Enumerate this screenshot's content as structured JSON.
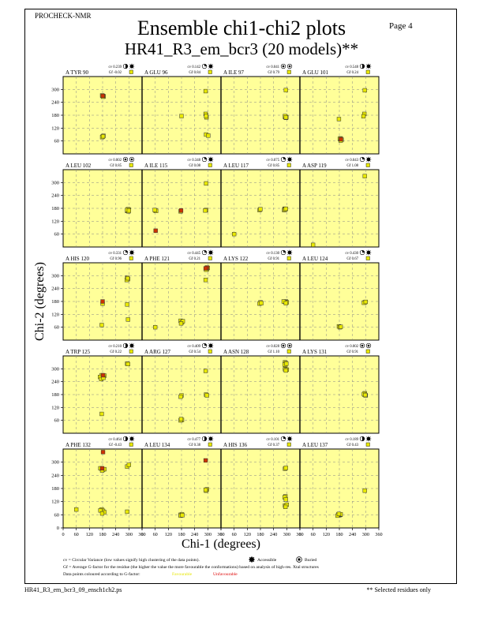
{
  "header": {
    "program": "PROCHECK-NMR",
    "page_label": "Page  4",
    "title": "Ensemble chi1-chi2 plots",
    "subtitle": "HR41_R3_em_bcr3 (20 models)**"
  },
  "footer": {
    "filename": "HR41_R3_em_bcr3_09_ensch1ch2.ps",
    "note": "** Selected residues only"
  },
  "legend": {
    "line1": "cv = Circular Variance (low values signify high clustering of the data points).",
    "accessible": "Accessible",
    "buried": "Buried",
    "line2": "Gf = Average G-factor for the residue (the higher the value the more favourable the conformations) based on analysis of high-res. Xtal structures",
    "line3": "Data points coloured according to G-factor:",
    "favourable": "Favourable",
    "unfavourable": "Unfavourable"
  },
  "colors": {
    "panel_bg": "#ffff99",
    "point": "#e8e800",
    "point_bad": "#cc3300",
    "favourable_text": "#e6e600",
    "unfavourable_text": "#dd0000"
  },
  "chart_data": {
    "type": "scatter",
    "xlabel": "Chi-1 (degrees)",
    "ylabel": "Chi-2 (degrees)",
    "xlim": [
      0,
      360
    ],
    "ylim": [
      0,
      360
    ],
    "x_ticks": [
      0,
      60,
      120,
      180,
      240,
      300,
      360
    ],
    "y_ticks": [
      60,
      120,
      180,
      240,
      300
    ],
    "bottom_y_ticks": [
      0,
      60,
      120,
      180,
      240,
      300
    ],
    "grid": true,
    "rows": [
      [
        {
          "label": "A TYR 90",
          "cv": "cv 0.239",
          "gf": "Gf -0.02",
          "acc": "partial",
          "pts": [
            [
              180,
              270
            ],
            [
              185,
              268
            ],
            [
              178,
              272
            ],
            [
              182,
              266
            ],
            [
              180,
              80
            ],
            [
              184,
              84
            ],
            [
              178,
              78
            ],
            [
              182,
              82
            ]
          ],
          "bad": [
            [
              181,
              270
            ]
          ]
        },
        {
          "label": "A GLU 96",
          "cv": "cv 0.142",
          "gf": "Gf 0.84",
          "acc": "accessible",
          "pts": [
            [
              290,
              292
            ],
            [
              292,
              180
            ],
            [
              294,
              170
            ],
            [
              290,
              186
            ],
            [
              292,
              176
            ],
            [
              292,
              90
            ],
            [
              302,
              85
            ],
            [
              180,
              176
            ]
          ],
          "bad": []
        },
        {
          "label": "A ILE 97",
          "cv": "cv 0.041",
          "gf": "Gf 0.79",
          "acc": "buried",
          "pts": [
            [
              296,
              297
            ],
            [
              292,
              172
            ],
            [
              296,
              168
            ],
            [
              294,
              174
            ],
            [
              298,
              170
            ],
            [
              292,
              176
            ],
            [
              296,
              170
            ]
          ],
          "bad": []
        },
        {
          "label": "A GLU 101",
          "cv": "cv 0.548",
          "gf": "Gf 0.24",
          "acc": "partial",
          "pts": [
            [
              296,
              296
            ],
            [
              294,
              186
            ],
            [
              290,
              175
            ],
            [
              178,
              162
            ],
            [
              186,
              72
            ],
            [
              190,
              66
            ],
            [
              182,
              70
            ],
            [
              186,
              62
            ]
          ],
          "bad": [
            [
              187,
              68
            ]
          ]
        }
      ],
      [
        {
          "label": "A LEU 102",
          "cv": "cv 0.002",
          "gf": "Gf 0.85",
          "acc": "buried",
          "pts": [
            [
              296,
              172
            ],
            [
              292,
              168
            ],
            [
              300,
              174
            ],
            [
              294,
              170
            ],
            [
              298,
              166
            ],
            [
              296,
              176
            ],
            [
              292,
              172
            ],
            [
              300,
              170
            ]
          ],
          "bad": []
        },
        {
          "label": "A ILE 115",
          "cv": "cv 0.348",
          "gf": "Gf 0.08",
          "acc": "accessible",
          "pts": [
            [
              292,
              296
            ],
            [
              60,
              170
            ],
            [
              64,
              168
            ],
            [
              58,
              172
            ],
            [
              176,
              166
            ],
            [
              292,
              172
            ],
            [
              288,
              170
            ]
          ],
          "bad": [
            [
              62,
              76
            ],
            [
              178,
              170
            ]
          ]
        },
        {
          "label": "A LEU 117",
          "cv": "cv 0.075",
          "gf": "Gf 0.85",
          "acc": "accessible",
          "pts": [
            [
              290,
              178
            ],
            [
              294,
              176
            ],
            [
              288,
              172
            ],
            [
              292,
              174
            ],
            [
              296,
              178
            ],
            [
              176,
              172
            ],
            [
              180,
              176
            ],
            [
              60,
              60
            ]
          ],
          "bad": []
        },
        {
          "label": "A ASP 119",
          "cv": "cv 0.043",
          "gf": "Gf 1.08",
          "acc": "accessible",
          "pts": [
            [
              296,
              330
            ],
            [
              60,
              10
            ]
          ],
          "bad": []
        }
      ],
      [
        {
          "label": "A HIS 120",
          "cv": "cv 0.331",
          "gf": "Gf 0.96",
          "acc": "accessible",
          "pts": [
            [
              292,
              290
            ],
            [
              296,
              284
            ],
            [
              290,
              280
            ],
            [
              294,
              288
            ],
            [
              180,
              170
            ],
            [
              292,
              166
            ],
            [
              296,
              96
            ],
            [
              176,
              70
            ]
          ],
          "bad": [
            [
              180,
              180
            ]
          ]
        },
        {
          "label": "A PHE 121",
          "cv": "cv 0.445",
          "gf": "Gf 0.21",
          "acc": "accessible",
          "pts": [
            [
              296,
              330
            ],
            [
              300,
              336
            ],
            [
              292,
              328
            ],
            [
              290,
              280
            ],
            [
              176,
              90
            ],
            [
              182,
              82
            ],
            [
              186,
              88
            ],
            [
              178,
              78
            ],
            [
              60,
              60
            ]
          ],
          "bad": [
            [
              296,
              338
            ],
            [
              290,
              334
            ]
          ]
        },
        {
          "label": "A LYS 122",
          "cv": "cv 0.130",
          "gf": "Gf 0.91",
          "acc": "accessible",
          "pts": [
            [
              180,
              176
            ],
            [
              296,
              180
            ],
            [
              292,
              178
            ],
            [
              300,
              176
            ],
            [
              286,
              180
            ],
            [
              176,
              170
            ],
            [
              184,
              172
            ],
            [
              296,
              172
            ]
          ],
          "bad": []
        },
        {
          "label": "A LEU 124",
          "cv": "cv 0.430",
          "gf": "Gf 0.67",
          "acc": "accessible",
          "pts": [
            [
              296,
              176
            ],
            [
              292,
              174
            ],
            [
              300,
              178
            ],
            [
              178,
              64
            ],
            [
              182,
              60
            ],
            [
              186,
              62
            ]
          ],
          "bad": []
        }
      ],
      [
        {
          "label": "A TRP 125",
          "cv": "cv 0.210",
          "gf": "Gf 0.22",
          "acc": "partial",
          "pts": [
            [
              292,
              324
            ],
            [
              296,
              322
            ],
            [
              176,
              270
            ],
            [
              182,
              266
            ],
            [
              168,
              262
            ],
            [
              188,
              268
            ],
            [
              174,
              252
            ],
            [
              184,
              258
            ],
            [
              176,
              90
            ]
          ],
          "bad": [
            [
              182,
              270
            ]
          ]
        },
        {
          "label": "A ARG 127",
          "cv": "cv 0.409",
          "gf": "Gf 0.54",
          "acc": "accessible",
          "pts": [
            [
              290,
              290
            ],
            [
              292,
              180
            ],
            [
              296,
              176
            ],
            [
              180,
              176
            ],
            [
              176,
              170
            ],
            [
              182,
              62
            ],
            [
              176,
              60
            ],
            [
              178,
              66
            ]
          ],
          "bad": []
        },
        {
          "label": "A ASN 128",
          "cv": "cv 0.028",
          "gf": "Gf 1.10",
          "acc": "buried",
          "pts": [
            [
              292,
              330
            ],
            [
              296,
              326
            ],
            [
              294,
              316
            ],
            [
              290,
              320
            ],
            [
              298,
              324
            ],
            [
              292,
              298
            ],
            [
              300,
              296
            ],
            [
              296,
              292
            ]
          ],
          "bad": []
        },
        {
          "label": "A LYS 131",
          "cv": "cv 0.002",
          "gf": "Gf 0.91",
          "acc": "buried",
          "pts": [
            [
              296,
              186
            ],
            [
              294,
              180
            ],
            [
              300,
              176
            ],
            [
              292,
              182
            ],
            [
              298,
              178
            ]
          ],
          "bad": []
        }
      ],
      [
        {
          "label": "A PHE 132",
          "cv": "cv 0.464",
          "gf": "Gf -0.43",
          "acc": "partial",
          "pts": [
            [
              176,
              270
            ],
            [
              182,
              266
            ],
            [
              170,
              272
            ],
            [
              188,
              268
            ],
            [
              178,
              262
            ],
            [
              292,
              280
            ],
            [
              300,
              288
            ],
            [
              292,
              74
            ],
            [
              60,
              84
            ],
            [
              176,
              84
            ],
            [
              182,
              78
            ],
            [
              170,
              80
            ],
            [
              188,
              72
            ],
            [
              178,
              66
            ]
          ],
          "bad": [
            [
              182,
              346
            ],
            [
              178,
              272
            ]
          ]
        },
        {
          "label": "A LEU 134",
          "cv": "cv 0.477",
          "gf": "Gf 0.38",
          "acc": "partial",
          "pts": [
            [
              296,
              176
            ],
            [
              292,
              170
            ],
            [
              290,
              174
            ],
            [
              176,
              60
            ],
            [
              182,
              62
            ],
            [
              176,
              56
            ],
            [
              184,
              58
            ]
          ],
          "bad": [
            [
              290,
              308
            ]
          ]
        },
        {
          "label": "A HIS 136",
          "cv": "cv 0.101",
          "gf": "Gf 0.37",
          "acc": "accessible",
          "pts": [
            [
              292,
              270
            ],
            [
              296,
              274
            ],
            [
              294,
              144
            ],
            [
              290,
              140
            ],
            [
              296,
              130
            ],
            [
              292,
              102
            ],
            [
              300,
              106
            ],
            [
              294,
              96
            ]
          ],
          "bad": []
        },
        {
          "label": "A LEU 137",
          "cv": "cv 0.189",
          "gf": "Gf 0.43",
          "acc": "partial",
          "pts": [
            [
              296,
              170
            ],
            [
              176,
              62
            ],
            [
              180,
              58
            ],
            [
              184,
              60
            ],
            [
              172,
              56
            ],
            [
              186,
              62
            ],
            [
              178,
              64
            ]
          ],
          "bad": []
        }
      ]
    ]
  }
}
